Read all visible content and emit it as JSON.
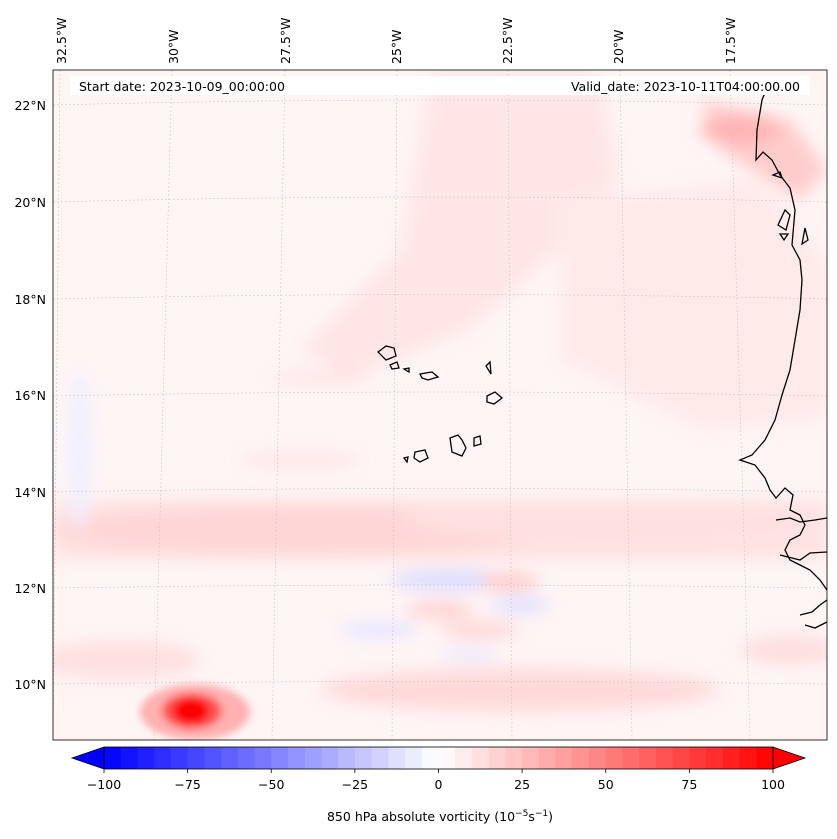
{
  "header": {
    "start_label": "Start date: 2023-10-09_00:00:00",
    "valid_label": "Valid_date: 2023-10-11T04:00:00.00"
  },
  "map": {
    "lon_labels": [
      "32.5°W",
      "30°W",
      "27.5°W",
      "25°W",
      "22.5°W",
      "20°W",
      "17.5°W"
    ],
    "lat_labels": [
      "22°N",
      "20°N",
      "18°N",
      "16°N",
      "14°N",
      "12°N",
      "10°N"
    ],
    "field_colors": {
      "positive": "#ff0000",
      "negative": "#0000ff",
      "neutral": "#ffffff"
    }
  },
  "colorbar": {
    "ticks": [
      "−100",
      "−75",
      "−50",
      "−25",
      "0",
      "25",
      "50",
      "75",
      "100"
    ],
    "label": "850 hPa absolute vorticity (10",
    "label_exp": "−5",
    "label_unit": "s",
    "label_exp2": "−1",
    "label_close": ")",
    "min": -100,
    "max": 100
  }
}
